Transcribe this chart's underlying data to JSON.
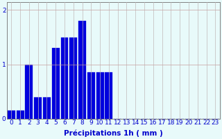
{
  "hours": [
    0,
    1,
    2,
    3,
    4,
    5,
    6,
    7,
    8,
    9,
    10,
    11,
    12,
    13,
    14,
    15,
    16,
    17,
    18,
    19,
    20,
    21,
    22,
    23
  ],
  "values": [
    0.15,
    0.15,
    1.0,
    0.4,
    0.4,
    1.3,
    1.5,
    1.5,
    1.8,
    0.85,
    0.85,
    0.85,
    0.0,
    0.0,
    0.0,
    0.0,
    0.0,
    0.0,
    0.0,
    0.0,
    0.0,
    0.0,
    0.0,
    0.0
  ],
  "bar_color": "#0000dd",
  "background_color": "#e8fafa",
  "grid_color_h": "#c8a0a0",
  "grid_color_v": "#c0b8b8",
  "text_color": "#0000cc",
  "xlabel": "Précipitations 1h ( mm )",
  "ylim": [
    0,
    2.15
  ],
  "yticks": [
    0,
    1,
    2
  ],
  "xlim": [
    -0.5,
    23.5
  ],
  "label_fontsize": 7.5,
  "tick_fontsize": 6.5
}
